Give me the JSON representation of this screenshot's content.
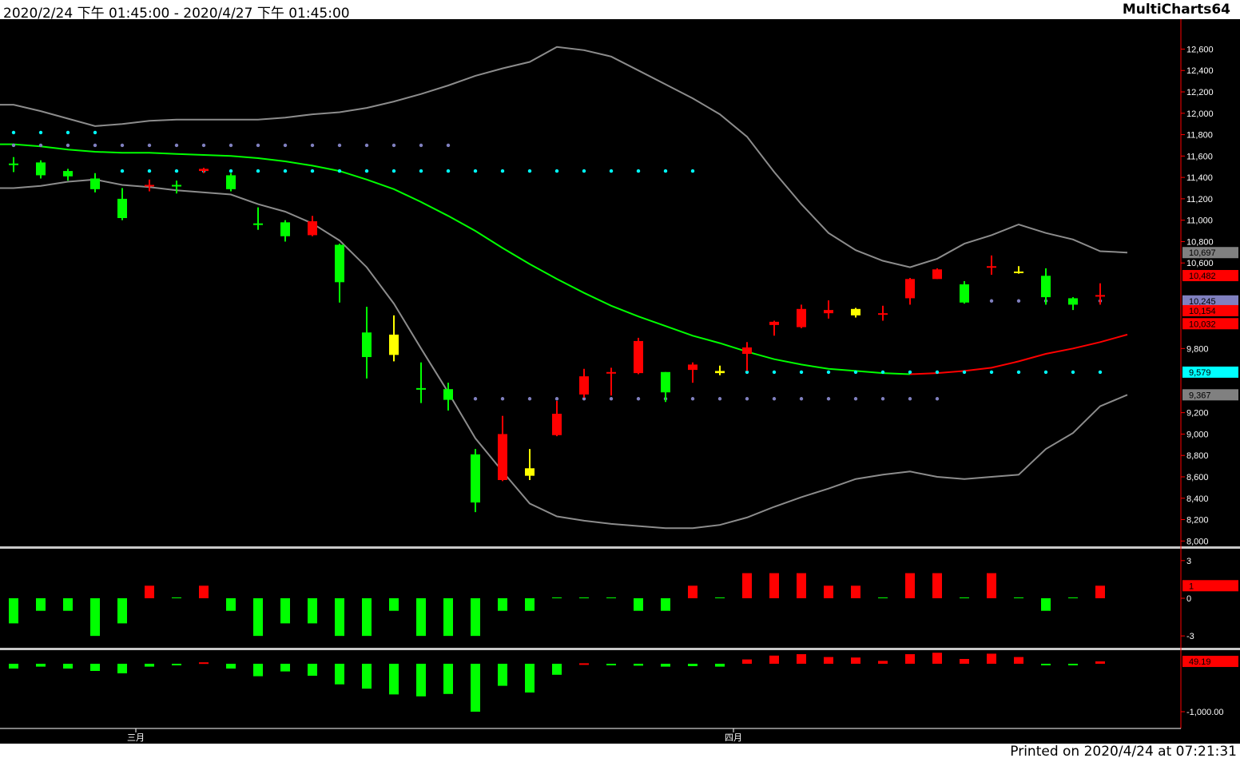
{
  "header": {
    "date_range": "2020/2/24 下午 01:45:00 - 2020/4/27 下午 01:45:00",
    "app_name": "MultiCharts64"
  },
  "footer": {
    "printed": "Printed on 2020/4/24 at 07:21:31"
  },
  "colors": {
    "background": "#000000",
    "up": "#ff0000",
    "down": "#00ff00",
    "neutral": "#ffff00",
    "band": "#8c8c8c",
    "mid_up": "#00ff00",
    "mid_down": "#ff0000",
    "cyan_dots": "#00ffff",
    "purple_dots": "#8080c0",
    "axis": "#ff0000"
  },
  "chart_data": [
    {
      "type": "candlestick",
      "title": "",
      "ylim": [
        7950,
        12850
      ],
      "y_ticks": [
        "12,600",
        "12,400",
        "12,200",
        "12,000",
        "11,800",
        "11,600",
        "11,400",
        "11,200",
        "11,000",
        "10,800",
        "10,600",
        "9,800",
        "9,200",
        "9,000",
        "8,800",
        "8,600",
        "8,400",
        "8,200",
        "8,000"
      ],
      "y_tick_values": [
        12600,
        12400,
        12200,
        12000,
        11800,
        11600,
        11400,
        11200,
        11000,
        10800,
        10600,
        9800,
        9200,
        9000,
        8800,
        8600,
        8400,
        8200,
        8000
      ],
      "x_labels": [
        {
          "label": "三月",
          "index": 4.5
        },
        {
          "label": "四月",
          "index": 26.5
        }
      ],
      "candles": [
        {
          "o": 11530,
          "h": 11590,
          "l": 11450,
          "c": 11520,
          "color": "down"
        },
        {
          "o": 11540,
          "h": 11560,
          "l": 11390,
          "c": 11420,
          "color": "down"
        },
        {
          "o": 11460,
          "h": 11480,
          "l": 11370,
          "c": 11410,
          "color": "down"
        },
        {
          "o": 11390,
          "h": 11440,
          "l": 11260,
          "c": 11290,
          "color": "down"
        },
        {
          "o": 11200,
          "h": 11300,
          "l": 11000,
          "c": 11020,
          "color": "down"
        },
        {
          "o": 11330,
          "h": 11380,
          "l": 11270,
          "c": 11330,
          "color": "up"
        },
        {
          "o": 11330,
          "h": 11370,
          "l": 11250,
          "c": 11330,
          "color": "down"
        },
        {
          "o": 11460,
          "h": 11490,
          "l": 11440,
          "c": 11480,
          "color": "up"
        },
        {
          "o": 11420,
          "h": 11440,
          "l": 11270,
          "c": 11290,
          "color": "down"
        },
        {
          "o": 10970,
          "h": 11120,
          "l": 10910,
          "c": 10970,
          "color": "down"
        },
        {
          "o": 10980,
          "h": 11000,
          "l": 10800,
          "c": 10850,
          "color": "down"
        },
        {
          "o": 10860,
          "h": 11040,
          "l": 10850,
          "c": 10990,
          "color": "up"
        },
        {
          "o": 10770,
          "h": 10780,
          "l": 10230,
          "c": 10420,
          "color": "down"
        },
        {
          "o": 9950,
          "h": 10190,
          "l": 9520,
          "c": 9720,
          "color": "down"
        },
        {
          "o": 9740,
          "h": 10110,
          "l": 9680,
          "c": 9930,
          "color": "neutral"
        },
        {
          "o": 9430,
          "h": 9670,
          "l": 9290,
          "c": 9430,
          "color": "down"
        },
        {
          "o": 9420,
          "h": 9480,
          "l": 9220,
          "c": 9320,
          "color": "down"
        },
        {
          "o": 8810,
          "h": 8860,
          "l": 8270,
          "c": 8360,
          "color": "down"
        },
        {
          "o": 8570,
          "h": 9170,
          "l": 8560,
          "c": 9000,
          "color": "up"
        },
        {
          "o": 8680,
          "h": 8860,
          "l": 8570,
          "c": 8610,
          "color": "neutral"
        },
        {
          "o": 8990,
          "h": 9310,
          "l": 8980,
          "c": 9190,
          "color": "up"
        },
        {
          "o": 9370,
          "h": 9610,
          "l": 9340,
          "c": 9540,
          "color": "up"
        },
        {
          "o": 9580,
          "h": 9620,
          "l": 9360,
          "c": 9580,
          "color": "up"
        },
        {
          "o": 9570,
          "h": 9900,
          "l": 9560,
          "c": 9870,
          "color": "up"
        },
        {
          "o": 9580,
          "h": 9580,
          "l": 9300,
          "c": 9390,
          "color": "down"
        },
        {
          "o": 9600,
          "h": 9670,
          "l": 9480,
          "c": 9650,
          "color": "up"
        },
        {
          "o": 9570,
          "h": 9640,
          "l": 9550,
          "c": 9590,
          "color": "neutral"
        },
        {
          "o": 9750,
          "h": 9860,
          "l": 9590,
          "c": 9810,
          "color": "up"
        },
        {
          "o": 10020,
          "h": 10060,
          "l": 9920,
          "c": 10050,
          "color": "up"
        },
        {
          "o": 10000,
          "h": 10210,
          "l": 9990,
          "c": 10170,
          "color": "up"
        },
        {
          "o": 10130,
          "h": 10250,
          "l": 10080,
          "c": 10160,
          "color": "up"
        },
        {
          "o": 10170,
          "h": 10180,
          "l": 10090,
          "c": 10110,
          "color": "neutral"
        },
        {
          "o": 10120,
          "h": 10200,
          "l": 10060,
          "c": 10130,
          "color": "up"
        },
        {
          "o": 10270,
          "h": 10460,
          "l": 10210,
          "c": 10450,
          "color": "up"
        },
        {
          "o": 10450,
          "h": 10550,
          "l": 10450,
          "c": 10540,
          "color": "up"
        },
        {
          "o": 10400,
          "h": 10430,
          "l": 10220,
          "c": 10230,
          "color": "down"
        },
        {
          "o": 10560,
          "h": 10670,
          "l": 10490,
          "c": 10570,
          "color": "up"
        },
        {
          "o": 10520,
          "h": 10570,
          "l": 10500,
          "c": 10520,
          "color": "neutral"
        },
        {
          "o": 10480,
          "h": 10550,
          "l": 10210,
          "c": 10280,
          "color": "down"
        },
        {
          "o": 10270,
          "h": 10280,
          "l": 10160,
          "c": 10210,
          "color": "down"
        },
        {
          "o": 10290,
          "h": 10410,
          "l": 10210,
          "c": 10300,
          "color": "up"
        }
      ],
      "upper_band": [
        12080,
        12020,
        11950,
        11880,
        11900,
        11930,
        11940,
        11940,
        11940,
        11940,
        11960,
        11990,
        12010,
        12050,
        12110,
        12180,
        12260,
        12350,
        12420,
        12480,
        12620,
        12590,
        12530,
        12400,
        12270,
        12140,
        11990,
        11780,
        11450,
        11150,
        10880,
        10720,
        10620,
        10560,
        10640,
        10780,
        10860,
        10960,
        10880,
        10820,
        10710,
        10697
      ],
      "lower_band": [
        11300,
        11320,
        11360,
        11380,
        11330,
        11310,
        11280,
        11260,
        11240,
        11150,
        11080,
        10970,
        10810,
        10560,
        10220,
        9800,
        9390,
        8960,
        8650,
        8350,
        8230,
        8190,
        8160,
        8140,
        8120,
        8120,
        8150,
        8220,
        8320,
        8410,
        8490,
        8580,
        8620,
        8650,
        8600,
        8580,
        8600,
        8620,
        8860,
        9010,
        9260,
        9367
      ],
      "middle_band": [
        11710,
        11690,
        11660,
        11640,
        11630,
        11630,
        11620,
        11610,
        11600,
        11580,
        11550,
        11510,
        11460,
        11380,
        11290,
        11170,
        11040,
        10900,
        10740,
        10590,
        10450,
        10320,
        10200,
        10100,
        10010,
        9920,
        9850,
        9770,
        9700,
        9650,
        9610,
        9590,
        9570,
        9560,
        9570,
        9590,
        9620,
        9680,
        9750,
        9800,
        9860,
        9930
      ],
      "mid_color_switch_index": 33,
      "cyan_dots_top": {
        "value": 11820,
        "from": 0,
        "to": 3
      },
      "purple_dots_top": {
        "value": 11700,
        "from": 0,
        "to": 16
      },
      "cyan_dots_mid": {
        "value": 11460,
        "from": 4,
        "to": 25
      },
      "purple_dots_low": {
        "value": 9330,
        "from": 17,
        "to": 34
      },
      "cyan_dots_low": {
        "value": 9579,
        "from": 27,
        "to": 40
      },
      "purple_dots_right": {
        "value": 10245,
        "from": 36,
        "to": 40
      },
      "price_labels": [
        {
          "text": "10,697",
          "value": 10697,
          "bg": "#808080",
          "fg": "#000000"
        },
        {
          "text": "10,482",
          "value": 10482,
          "bg": "#ff0000",
          "fg": "#000000"
        },
        {
          "text": "10,245",
          "value": 10245,
          "bg": "#8080c0",
          "fg": "#000000"
        },
        {
          "text": "10,154",
          "value": 10154,
          "bg": "#ff0000",
          "fg": "#000000"
        },
        {
          "text": "10,032",
          "value": 10032,
          "bg": "#ff0000",
          "fg": "#000000"
        },
        {
          "text": "9,579",
          "value": 9579,
          "bg": "#00ffff",
          "fg": "#000000"
        },
        {
          "text": "9,367",
          "value": 9367,
          "bg": "#808080",
          "fg": "#000000"
        }
      ]
    },
    {
      "type": "bar",
      "title": "",
      "ylim": [
        -3.5,
        3.5
      ],
      "y_ticks": [
        "3",
        "0",
        "-3"
      ],
      "y_tick_values": [
        3,
        0,
        -3
      ],
      "values": [
        -2,
        -1,
        -1,
        -3,
        -2,
        1,
        0,
        1,
        -1,
        -3,
        -2,
        -2,
        -3,
        -3,
        -1,
        -3,
        -3,
        -3,
        -1,
        -1,
        0,
        0,
        0,
        -1,
        -1,
        1,
        0,
        2,
        2,
        2,
        1,
        1,
        0,
        2,
        2,
        0,
        2,
        0,
        -1,
        0,
        1
      ],
      "last_label": {
        "text": "1",
        "value": 1
      }
    },
    {
      "type": "bar",
      "title": "",
      "ylim": [
        -1350,
        200
      ],
      "y_ticks": [
        "-1,000.00"
      ],
      "y_tick_values": [
        -1000
      ],
      "values": [
        -100,
        -60,
        -100,
        -150,
        -200,
        -60,
        -30,
        30,
        -100,
        -260,
        -160,
        -250,
        -430,
        -520,
        -640,
        -680,
        -630,
        -1000,
        -460,
        -600,
        -230,
        10,
        0,
        -40,
        -60,
        -50,
        -60,
        90,
        170,
        200,
        140,
        130,
        60,
        200,
        230,
        100,
        210,
        140,
        -10,
        -10,
        49.19
      ],
      "last_label": {
        "text": "49.19",
        "value": 49.19
      }
    }
  ]
}
